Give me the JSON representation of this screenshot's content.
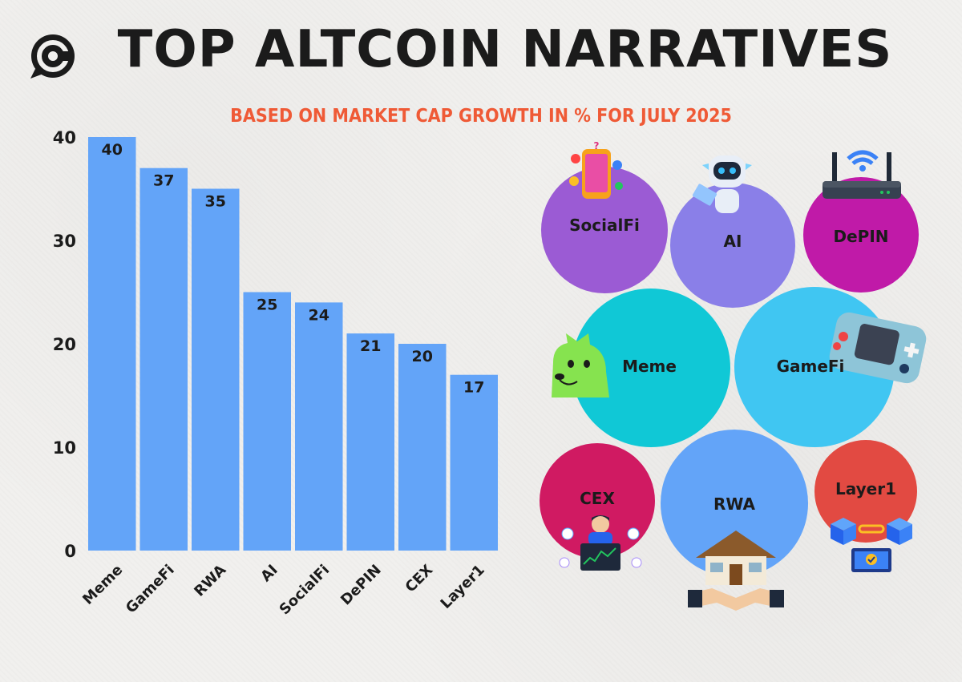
{
  "title": "TOP ALTCOIN NARRATIVES",
  "subtitle": "BASED ON MARKET CAP GROWTH IN % FOR JULY 2025",
  "logo": {
    "icon": "coin-chat-logo-icon"
  },
  "colors": {
    "bar": "#63a4f8",
    "title": "#1b1b1b",
    "subtitle": "#ef5a36",
    "background": "#f1f0ee"
  },
  "chart_data": {
    "type": "bar",
    "categories": [
      "Meme",
      "GameFi",
      "RWA",
      "AI",
      "SocialFi",
      "DePIN",
      "CEX",
      "Layer1"
    ],
    "values": [
      40,
      37,
      35,
      25,
      24,
      21,
      20,
      17
    ],
    "yticks": [
      0,
      10,
      20,
      30,
      40
    ],
    "ylim": [
      0,
      40
    ],
    "grid": false,
    "legend": "none",
    "data_labels": true
  },
  "bubbles": [
    {
      "label": "SocialFi",
      "color": "#9b5bd4",
      "icon": "social-phone-icon"
    },
    {
      "label": "AI",
      "color": "#8a7fe8",
      "icon": "robot-icon"
    },
    {
      "label": "DePIN",
      "color": "#c01aa8",
      "icon": "wifi-router-icon"
    },
    {
      "label": "Meme",
      "color": "#10c8d6",
      "icon": "doge-icon"
    },
    {
      "label": "GameFi",
      "color": "#40c6f2",
      "icon": "game-console-icon"
    },
    {
      "label": "CEX",
      "color": "#d01a62",
      "icon": "trader-icon"
    },
    {
      "label": "RWA",
      "color": "#63a4f8",
      "icon": "house-handshake-icon"
    },
    {
      "label": "Layer1",
      "color": "#e24a42",
      "icon": "blockchain-icon"
    }
  ]
}
